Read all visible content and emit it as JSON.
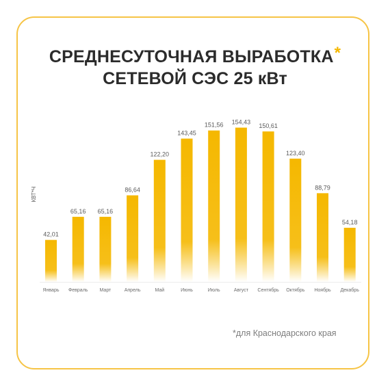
{
  "title": {
    "line1": "СРЕДНЕСУТОЧНАЯ ВЫРАБОТКА",
    "asterisk": "*",
    "line2": "СЕТЕВОЙ СЭС 25 кВт"
  },
  "footnote": "*для Краснодарского края",
  "colors": {
    "bar_top": "#f5b800",
    "bar_bottom": "#ffffff",
    "border": "#f6c445",
    "title": "#2b2b2b",
    "label": "#5a5a5a",
    "axis": "#ececec"
  },
  "chart_data": {
    "type": "bar",
    "ylabel": "КВТ*Ч",
    "xlabel": "",
    "categories": [
      "Январь",
      "Февраль",
      "Март",
      "Апрель",
      "Май",
      "Июнь",
      "Июль",
      "Август",
      "Сентябрь",
      "Октябрь",
      "Ноябрь",
      "Декабрь"
    ],
    "value_labels": [
      "42,01",
      "65,16",
      "65,16",
      "86,64",
      "122,20",
      "143,45",
      "151,56",
      "154,43",
      "150,61",
      "123,40",
      "88,79",
      "54,18"
    ],
    "values": [
      42.01,
      65.16,
      65.16,
      86.64,
      122.2,
      143.45,
      151.56,
      154.43,
      150.61,
      123.4,
      88.79,
      54.18
    ],
    "ylim": [
      0,
      160
    ],
    "grid": false,
    "legend": "none"
  }
}
